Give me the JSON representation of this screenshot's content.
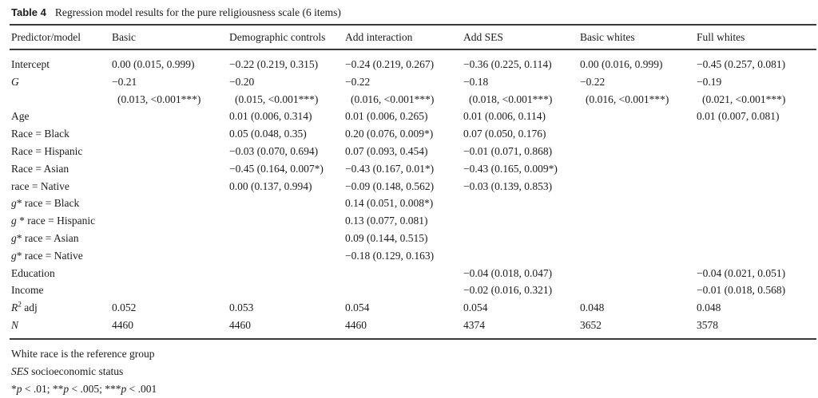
{
  "caption": {
    "label": "Table 4",
    "text": "Regression model results for the pure religiousness scale (6 items)"
  },
  "table": {
    "headers": [
      "Predictor/model",
      "Basic",
      "Demographic controls",
      "Add interaction",
      "Add SES",
      "Basic whites",
      "Full whites"
    ],
    "rows": [
      {
        "label": [
          {
            "t": "Intercept"
          }
        ],
        "cells": [
          [
            "0.00 (0.015, 0.999)"
          ],
          [
            "−0.22 (0.219, 0.315)"
          ],
          [
            "−0.24 (0.219, 0.267)"
          ],
          [
            "−0.36 (0.225, 0.114)"
          ],
          [
            "0.00 (0.016, 0.999)"
          ],
          [
            "−0.45 (0.257, 0.081)"
          ]
        ]
      },
      {
        "label": [
          {
            "t": "G",
            "i": true
          }
        ],
        "cells": [
          [
            "−0.21",
            "(0.013, <0.001***)"
          ],
          [
            "−0.20",
            "(0.015, <0.001***)"
          ],
          [
            "−0.22",
            "(0.016, <0.001***)"
          ],
          [
            "−0.18",
            "(0.018, <0.001***)"
          ],
          [
            "−0.22",
            "(0.016, <0.001***)"
          ],
          [
            "−0.19",
            "(0.021, <0.001***)"
          ]
        ]
      },
      {
        "label": [
          {
            "t": "Age"
          }
        ],
        "cells": [
          [],
          [
            "0.01 (0.006, 0.314)"
          ],
          [
            "0.01 (0.006, 0.265)"
          ],
          [
            "0.01 (0.006, 0.114)"
          ],
          [],
          [
            "0.01 (0.007, 0.081)"
          ]
        ]
      },
      {
        "label": [
          {
            "t": "Race = Black"
          }
        ],
        "cells": [
          [],
          [
            "0.05 (0.048, 0.35)"
          ],
          [
            "0.20 (0.076, 0.009*)"
          ],
          [
            "0.07 (0.050, 0.176)"
          ],
          [],
          []
        ]
      },
      {
        "label": [
          {
            "t": "Race = Hispanic"
          }
        ],
        "cells": [
          [],
          [
            "−0.03 (0.070, 0.694)"
          ],
          [
            "0.07 (0.093, 0.454)"
          ],
          [
            "−0.01 (0.071, 0.868)"
          ],
          [],
          []
        ]
      },
      {
        "label": [
          {
            "t": "Race = Asian"
          }
        ],
        "cells": [
          [],
          [
            "−0.45 (0.164, 0.007*)"
          ],
          [
            "−0.43 (0.167, 0.01*)"
          ],
          [
            "−0.43 (0.165, 0.009*)"
          ],
          [],
          []
        ]
      },
      {
        "label": [
          {
            "t": "race = Native"
          }
        ],
        "cells": [
          [],
          [
            "0.00 (0.137, 0.994)"
          ],
          [
            "−0.09 (0.148, 0.562)"
          ],
          [
            "−0.03 (0.139, 0.853)"
          ],
          [],
          []
        ]
      },
      {
        "label": [
          {
            "t": "g",
            "i": true
          },
          {
            "t": "* race = Black"
          }
        ],
        "cells": [
          [],
          [],
          [
            "0.14 (0.051, 0.008*)"
          ],
          [],
          [],
          []
        ]
      },
      {
        "label": [
          {
            "t": "g",
            "i": true
          },
          {
            "t": " * race = Hispanic"
          }
        ],
        "cells": [
          [],
          [],
          [
            "0.13 (0.077, 0.081)"
          ],
          [],
          [],
          []
        ]
      },
      {
        "label": [
          {
            "t": "g",
            "i": true
          },
          {
            "t": "* race = Asian"
          }
        ],
        "cells": [
          [],
          [],
          [
            "0.09 (0.144, 0.515)"
          ],
          [],
          [],
          []
        ]
      },
      {
        "label": [
          {
            "t": "g",
            "i": true
          },
          {
            "t": "* race = Native"
          }
        ],
        "cells": [
          [],
          [],
          [
            "−0.18 (0.129, 0.163)"
          ],
          [],
          [],
          []
        ]
      },
      {
        "label": [
          {
            "t": "Education"
          }
        ],
        "cells": [
          [],
          [],
          [],
          [
            "−0.04 (0.018, 0.047)"
          ],
          [],
          [
            "−0.04 (0.021, 0.051)"
          ]
        ]
      },
      {
        "label": [
          {
            "t": "Income"
          }
        ],
        "cells": [
          [],
          [],
          [],
          [
            "−0.02 (0.016, 0.321)"
          ],
          [],
          [
            "−0.01 (0.018, 0.568)"
          ]
        ]
      },
      {
        "label": [
          {
            "t": "R",
            "i": true
          },
          {
            "t": "2",
            "sup": true
          },
          {
            "t": " adj"
          }
        ],
        "cells": [
          [
            "0.052"
          ],
          [
            "0.053"
          ],
          [
            "0.054"
          ],
          [
            "0.054"
          ],
          [
            "0.048"
          ],
          [
            "0.048"
          ]
        ]
      },
      {
        "label": [
          {
            "t": "N",
            "i": true
          }
        ],
        "cells": [
          [
            "4460"
          ],
          [
            "4460"
          ],
          [
            "4460"
          ],
          [
            "4374"
          ],
          [
            "3652"
          ],
          [
            "3578"
          ]
        ]
      }
    ]
  },
  "footnotes": {
    "reference_group": "White race is the reference group",
    "ses_term": "SES",
    "ses_text": " socioeconomic status",
    "significance": [
      {
        "t": "*"
      },
      {
        "t": "p",
        "i": true
      },
      {
        "t": " < .01; **"
      },
      {
        "t": "p",
        "i": true
      },
      {
        "t": " < .005; ***"
      },
      {
        "t": "p",
        "i": true
      },
      {
        "t": " < .001"
      }
    ]
  }
}
